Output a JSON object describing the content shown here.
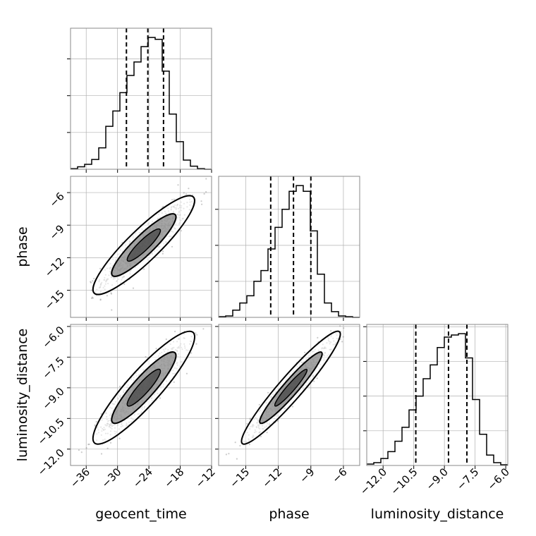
{
  "chart_data": {
    "type": "corner",
    "parameters": [
      "geocent_time",
      "phase",
      "luminosity_distance"
    ],
    "axis_labels": {
      "geocent_time": "geocent_time",
      "phase": "phase",
      "luminosity_distance": "luminosity_distance"
    },
    "ranges": {
      "geocent_time": [
        -39,
        -12
      ],
      "phase": [
        -17.5,
        -4.5
      ],
      "luminosity_distance": [
        -12.8,
        -5.9
      ]
    },
    "ticks": {
      "geocent_time": [
        -36,
        -30,
        -24,
        -18,
        -12
      ],
      "phase": [
        -15,
        -12,
        -9,
        -6
      ],
      "luminosity_distance": [
        -12.0,
        -10.5,
        -9.0,
        -7.5,
        -6.0
      ]
    },
    "tick_labels": {
      "geocent_time": [
        "−36",
        "−30",
        "−24",
        "−18",
        "−12"
      ],
      "phase": [
        "−15",
        "−12",
        "−9",
        "−6"
      ],
      "luminosity_distance": [
        "−12.0",
        "−10.5",
        "−9.0",
        "−7.5",
        "−6.0"
      ]
    },
    "quantiles": {
      "geocent_time": [
        -28.3,
        -24.2,
        -21.2
      ],
      "phase": [
        -12.7,
        -10.6,
        -9.0
      ],
      "luminosity_distance": [
        -10.4,
        -8.8,
        -7.9
      ]
    },
    "histograms": {
      "geocent_time": {
        "bin_edges": [
          -39.0,
          -37.65,
          -36.3,
          -34.95,
          -33.6,
          -32.25,
          -30.9,
          -29.55,
          -28.2,
          -26.85,
          -25.5,
          -24.15,
          -22.8,
          -21.45,
          -20.1,
          -18.75,
          -17.4,
          -16.05,
          -14.7,
          -13.35,
          -12.0
        ],
        "counts": [
          1,
          4,
          8,
          16,
          35,
          70,
          95,
          125,
          153,
          175,
          200,
          215,
          212,
          160,
          90,
          45,
          15,
          5,
          1,
          0
        ]
      },
      "phase": {
        "bin_edges": [
          -17.5,
          -16.85,
          -16.2,
          -15.55,
          -14.9,
          -14.25,
          -13.6,
          -12.95,
          -12.3,
          -11.65,
          -11.0,
          -10.35,
          -9.7,
          -9.05,
          -8.4,
          -7.75,
          -7.1,
          -6.45,
          -5.8,
          -5.15,
          -4.5
        ],
        "counts": [
          1,
          2,
          10,
          20,
          30,
          50,
          65,
          95,
          125,
          150,
          175,
          183,
          175,
          120,
          60,
          20,
          8,
          2,
          1,
          0
        ]
      },
      "luminosity_distance": {
        "bin_edges": [
          -12.8,
          -12.455,
          -12.11,
          -11.765,
          -11.42,
          -11.075,
          -10.73,
          -10.385,
          -10.04,
          -9.695,
          -9.35,
          -9.005,
          -8.66,
          -8.315,
          -7.97,
          -7.625,
          -7.28,
          -6.935,
          -6.59,
          -6.245,
          -5.9
        ],
        "counts": [
          2,
          4,
          10,
          20,
          35,
          55,
          80,
          100,
          125,
          145,
          170,
          185,
          188,
          190,
          155,
          95,
          45,
          15,
          4,
          1
        ]
      }
    },
    "correlations": {
      "phase_vs_geocent_time": 0.9,
      "luminosity_distance_vs_geocent_time": 0.9,
      "luminosity_distance_vs_phase": 0.95
    },
    "grid": true,
    "colors": {
      "line": "#000000",
      "sample_points": "#8c8c8c",
      "grid": "#b0b0b0",
      "density_fill": "#7f7f7f"
    }
  }
}
